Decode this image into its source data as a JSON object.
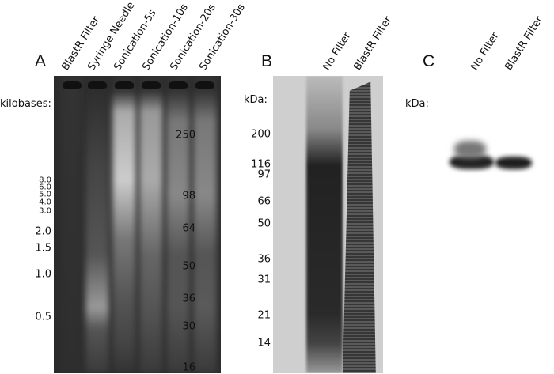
{
  "panelA": {
    "letter": "A",
    "lanes": [
      "BlastR Filter",
      "Syringe Needle",
      "Sonication-5s",
      "Sonication-10s",
      "Sonication-20s",
      "Sonication-30s"
    ],
    "unit_label": "kilobases:",
    "markers": [
      "8.0",
      "6.0",
      "5.0",
      "4.0",
      "3.0",
      "2.0",
      "1.5",
      "1.0",
      "0.5"
    ]
  },
  "panelB": {
    "letter": "B",
    "lanes": [
      "No Filter",
      "BlastR Filter"
    ],
    "unit_label": "kDa:",
    "markers": [
      "200",
      "116",
      "97",
      "66",
      "50",
      "36",
      "31",
      "21",
      "14"
    ]
  },
  "panelC": {
    "letter": "C",
    "lanes": [
      "No Filter",
      "BlastR Filter"
    ],
    "unit_label": "kDa:",
    "markers": [
      "250",
      "98",
      "64",
      "50",
      "36",
      "30",
      "16"
    ]
  },
  "colors": {
    "gel_a_bg": "#2b2b2b",
    "gel_b_bg": "#cfcfcf",
    "blot_band": "#1e1e1e"
  }
}
